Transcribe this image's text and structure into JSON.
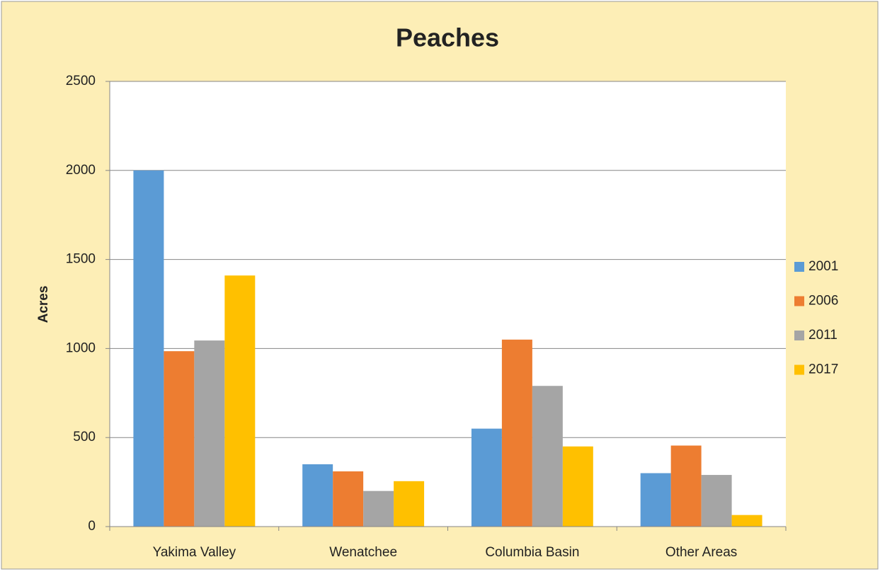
{
  "chart_data": {
    "type": "bar",
    "title": "Peaches",
    "y_label": "Acres",
    "categories": [
      "Yakima Valley",
      "Wenatchee",
      "Columbia Basin",
      "Other Areas"
    ],
    "series": [
      {
        "name": "2001",
        "color": "#5b9bd5",
        "values": [
          2000,
          350,
          550,
          300
        ]
      },
      {
        "name": "2006",
        "color": "#ed7d31",
        "values": [
          985,
          310,
          1050,
          455
        ]
      },
      {
        "name": "2011",
        "color": "#a5a5a5",
        "values": [
          1045,
          200,
          790,
          290
        ]
      },
      {
        "name": "2017",
        "color": "#ffc000",
        "values": [
          1410,
          255,
          450,
          65
        ]
      }
    ],
    "ylim": [
      0,
      2500
    ],
    "yticks": [
      0,
      500,
      1000,
      1500,
      2000,
      2500
    ],
    "grid": true,
    "legend": "right"
  }
}
